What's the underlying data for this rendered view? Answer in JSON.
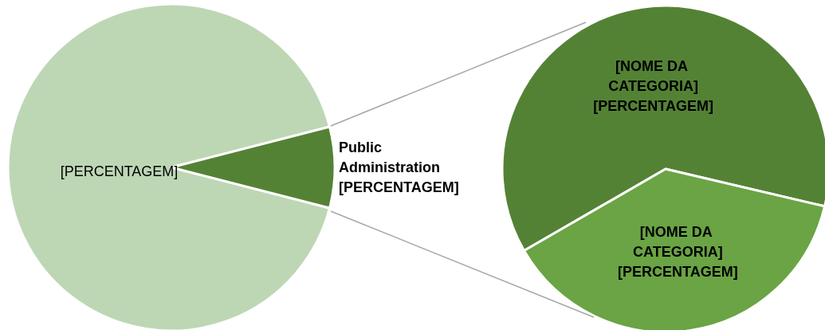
{
  "chart_data": [
    {
      "type": "pie",
      "categories": [
        null,
        "Public Administration"
      ],
      "values": [
        92,
        8
      ],
      "colors": [
        "#bdd7b5",
        "#548235"
      ],
      "value_labels": [
        "[PERCENTAGEM]",
        "[PERCENTAGEM]"
      ]
    },
    {
      "type": "pie",
      "categories": [
        "[NOME DA CATEGORIA]",
        "[NOME DA CATEGORIA]"
      ],
      "values": [
        62,
        38
      ],
      "colors": [
        "#548235",
        "#6aa444"
      ],
      "value_labels": [
        "[PERCENTAGEM]",
        "[PERCENTAGEM]"
      ]
    }
  ]
}
